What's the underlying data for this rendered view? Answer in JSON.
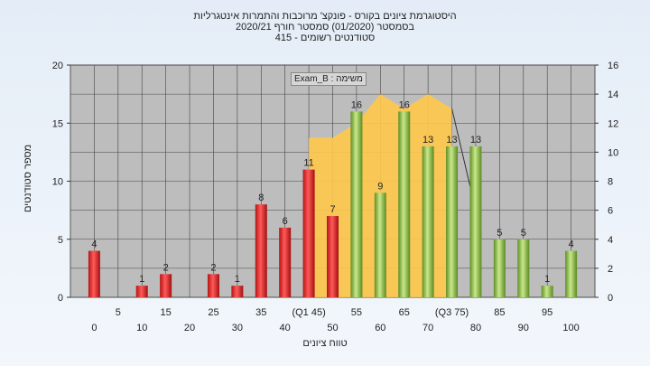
{
  "header": {
    "line1": "היסטוגרמת ציונים בקורס - פונקצ' מרוכבות והתמרות אינטגרליות",
    "line2": "בסמסטר  (01/2020)  סמסטר חורף  2020/21",
    "line3": "סטודנטים רשומים - 415"
  },
  "assignment_label": "משימה : Exam_B",
  "chart_data": {
    "type": "bar",
    "ylabel": "מספר סטודנטים",
    "xlabel": "טווח ציונים",
    "ylim": [
      0,
      20
    ],
    "y2lim": [
      0,
      16
    ],
    "y_ticks": [
      "0",
      "5",
      "10",
      "15",
      "20"
    ],
    "y2_ticks": [
      "0",
      "2",
      "4",
      "6",
      "8",
      "10",
      "12",
      "14",
      "16"
    ],
    "grid": true,
    "x_tick_labels_lower": [
      "0",
      "10",
      "20",
      "30",
      "40",
      "50",
      "60",
      "70",
      "80",
      "90",
      "100"
    ],
    "x_tick_labels_upper": [
      "5",
      "15",
      "25",
      "35",
      "(Q1 45)",
      "55",
      "65",
      "(Q3 75)",
      "85",
      "95"
    ],
    "categories": [
      "0",
      "5",
      "10",
      "15",
      "20",
      "25",
      "30",
      "35",
      "40",
      "45",
      "50",
      "55",
      "60",
      "65",
      "70",
      "75",
      "80",
      "85",
      "90",
      "95",
      "100"
    ],
    "values": [
      4,
      0,
      1,
      2,
      0,
      2,
      1,
      8,
      6,
      11,
      7,
      16,
      9,
      16,
      13,
      13,
      13,
      5,
      5,
      1,
      4
    ],
    "labels": [
      "4",
      "",
      "1",
      "2",
      "",
      "2",
      "1",
      "8",
      "6",
      "11",
      "7",
      "16",
      "9",
      "16",
      "13",
      "13",
      "13",
      "5",
      "5",
      "1",
      "4"
    ],
    "bar_colors": [
      "red",
      "red",
      "red",
      "red",
      "red",
      "red",
      "red",
      "red",
      "red",
      "red",
      "red",
      "green",
      "green",
      "green",
      "green",
      "green",
      "green",
      "green",
      "green",
      "green",
      "green"
    ],
    "iqr_area": {
      "x": [
        45,
        45,
        50,
        55,
        60,
        65,
        70,
        75,
        75
      ],
      "y": [
        0,
        11,
        11,
        12,
        14,
        13,
        14,
        13,
        0
      ]
    },
    "colors": {
      "red_bar": "#d92525",
      "green_bar": "#7fb63a",
      "area": "#ffc84a",
      "plot_bg": "#bdbdbd"
    }
  }
}
